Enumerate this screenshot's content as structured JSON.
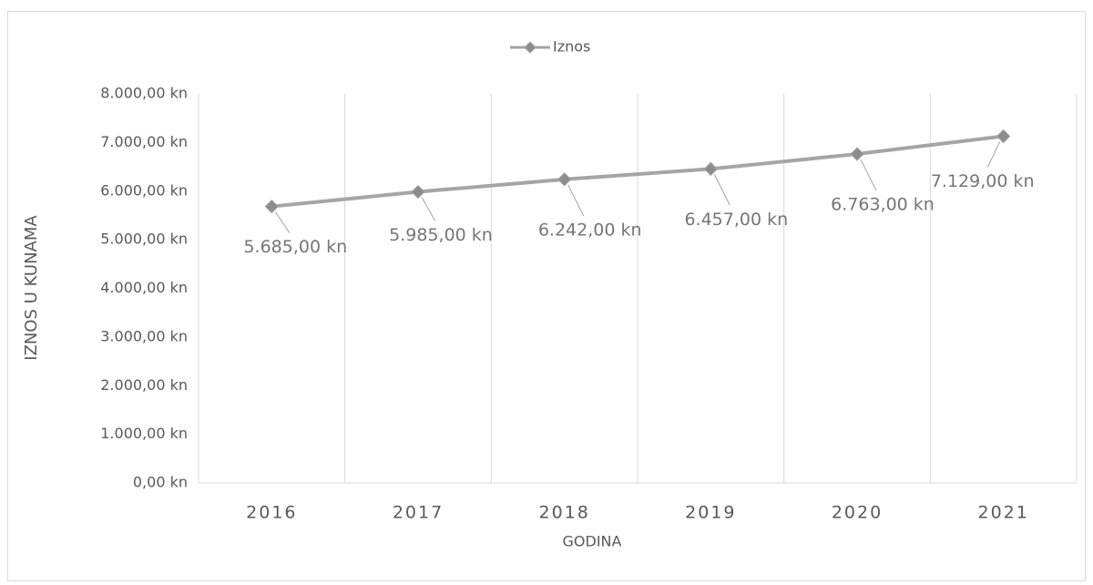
{
  "chart_data": {
    "type": "line",
    "x_label": "GODINA",
    "y_label": "IZNOS U KUNAMA",
    "categories": [
      "2016",
      "2017",
      "2018",
      "2019",
      "2020",
      "2021"
    ],
    "series": [
      {
        "name": "Iznos",
        "color": "#a5a5a5",
        "marker_color": "#8c8c8c",
        "values": [
          5685,
          5985,
          6242,
          6457,
          6763,
          7129
        ],
        "value_labels": [
          "5.685,00 kn",
          "5.985,00 kn",
          "6.242,00 kn",
          "6.457,00 kn",
          "6.763,00 kn",
          "7.129,00 kn"
        ]
      }
    ],
    "ylim": [
      0,
      8000
    ],
    "yticks": [
      {
        "value": 0,
        "label": "0,00 kn"
      },
      {
        "value": 1000,
        "label": "1.000,00 kn"
      },
      {
        "value": 2000,
        "label": "2.000,00 kn"
      },
      {
        "value": 3000,
        "label": "3.000,00 kn"
      },
      {
        "value": 4000,
        "label": "4.000,00 kn"
      },
      {
        "value": 5000,
        "label": "5.000,00 kn"
      },
      {
        "value": 6000,
        "label": "6.000,00 kn"
      },
      {
        "value": 7000,
        "label": "7.000,00 kn"
      },
      {
        "value": 8000,
        "label": "8.000,00 kn"
      }
    ],
    "grid": "vertical",
    "legend": "top"
  }
}
